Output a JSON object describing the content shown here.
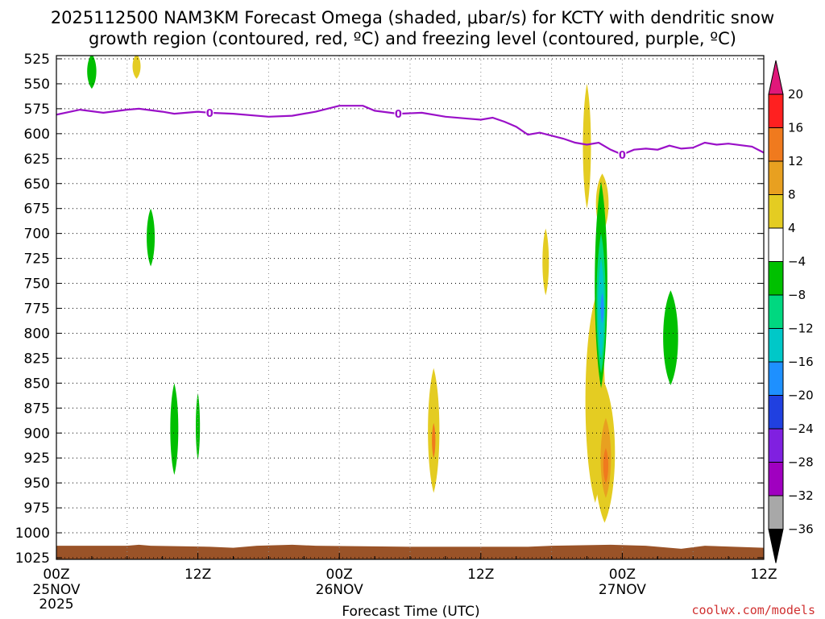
{
  "chart_data": {
    "type": "time-height",
    "title_line1": "2025112500 NAM3KM Forecast Omega (shaded, μbar/s) for KCTY with dendritic snow",
    "title_line2": "growth region (contoured, red, ºC) and freezing level (contoured, purple, ºC)",
    "xlabel": "Forecast Time (UTC)",
    "credit": "coolwx.com/models",
    "x_range_hours": [
      0,
      60
    ],
    "y_levels_hpa": [
      525,
      550,
      575,
      600,
      625,
      650,
      675,
      700,
      725,
      750,
      775,
      800,
      825,
      850,
      875,
      900,
      925,
      950,
      975,
      1000,
      1025
    ],
    "x_ticks": [
      {
        "hour": 0,
        "label": "00Z",
        "sub": "25NOV",
        "sub2": "2025"
      },
      {
        "hour": 12,
        "label": "12Z",
        "sub": "",
        "sub2": ""
      },
      {
        "hour": 24,
        "label": "00Z",
        "sub": "26NOV",
        "sub2": ""
      },
      {
        "hour": 36,
        "label": "12Z",
        "sub": "",
        "sub2": ""
      },
      {
        "hour": 48,
        "label": "00Z",
        "sub": "27NOV",
        "sub2": ""
      },
      {
        "hour": 60,
        "label": "12Z",
        "sub": "",
        "sub2": ""
      }
    ],
    "freezing_level": {
      "label": "0",
      "label_hours": [
        13,
        29,
        48
      ],
      "points": [
        [
          0,
          581
        ],
        [
          2,
          576
        ],
        [
          4,
          579
        ],
        [
          6,
          576
        ],
        [
          7,
          575
        ],
        [
          9,
          578
        ],
        [
          10,
          580
        ],
        [
          12,
          578
        ],
        [
          13,
          579
        ],
        [
          15,
          580
        ],
        [
          18,
          583
        ],
        [
          20,
          582
        ],
        [
          22,
          578
        ],
        [
          24,
          572
        ],
        [
          26,
          572
        ],
        [
          27,
          577
        ],
        [
          29,
          580
        ],
        [
          31,
          579
        ],
        [
          33,
          583
        ],
        [
          35,
          585
        ],
        [
          36,
          586
        ],
        [
          37,
          584
        ],
        [
          38,
          588
        ],
        [
          39,
          593
        ],
        [
          40,
          601
        ],
        [
          41,
          599
        ],
        [
          42,
          602
        ],
        [
          43,
          605
        ],
        [
          44,
          609
        ],
        [
          45,
          611
        ],
        [
          46,
          609
        ],
        [
          47,
          616
        ],
        [
          48,
          621
        ],
        [
          49,
          616
        ],
        [
          50,
          615
        ],
        [
          51,
          616
        ],
        [
          52,
          612
        ],
        [
          53,
          615
        ],
        [
          54,
          614
        ],
        [
          55,
          609
        ],
        [
          56,
          611
        ],
        [
          57,
          610
        ],
        [
          59,
          613
        ],
        [
          60,
          619
        ]
      ]
    },
    "omega_colorbar": {
      "boundaries": [
        20,
        16,
        12,
        8,
        4,
        -4,
        -8,
        -12,
        -16,
        -20,
        -24,
        -28,
        -32,
        -36
      ],
      "colors": [
        "#ff2020",
        "#f07a1e",
        "#e8a020",
        "#e4cc22",
        "#ffffff",
        "#00c000",
        "#00d880",
        "#00c8c8",
        "#1e90ff",
        "#2040e0",
        "#8020e0",
        "#a000c0",
        "#a8a8a8"
      ],
      "top_arrow_color": "#e0187a",
      "bottom_arrow_color": "#000000"
    },
    "omega_features": [
      {
        "hour": 3.0,
        "p_top": 520,
        "p_bottom": 555,
        "half_width_h": 0.4,
        "value": -6
      },
      {
        "hour": 6.8,
        "p_top": 520,
        "p_bottom": 545,
        "half_width_h": 0.35,
        "value": 5
      },
      {
        "hour": 8.0,
        "p_top": 675,
        "p_bottom": 733,
        "half_width_h": 0.35,
        "value": -6
      },
      {
        "hour": 10.0,
        "p_top": 850,
        "p_bottom": 942,
        "half_width_h": 0.35,
        "value": -6
      },
      {
        "hour": 12.0,
        "p_top": 860,
        "p_bottom": 927,
        "half_width_h": 0.18,
        "value": -6
      },
      {
        "hour": 32.0,
        "p_top": 835,
        "p_bottom": 960,
        "half_width_h": 0.5,
        "value": 6
      },
      {
        "hour": 32.0,
        "p_top": 890,
        "p_bottom": 925,
        "half_width_h": 0.15,
        "value": 13
      },
      {
        "hour": 41.5,
        "p_top": 695,
        "p_bottom": 762,
        "half_width_h": 0.28,
        "value": 5
      },
      {
        "hour": 45.0,
        "p_top": 550,
        "p_bottom": 675,
        "half_width_h": 0.35,
        "value": 5
      },
      {
        "hour": 46.3,
        "p_top": 640,
        "p_bottom": 700,
        "half_width_h": 0.55,
        "value": 6
      },
      {
        "hour": 45.7,
        "p_top": 765,
        "p_bottom": 970,
        "half_width_h": 0.85,
        "value": 6
      },
      {
        "hour": 46.5,
        "p_top": 850,
        "p_bottom": 990,
        "half_width_h": 0.9,
        "value": 6
      },
      {
        "hour": 46.6,
        "p_top": 885,
        "p_bottom": 965,
        "half_width_h": 0.45,
        "value": 10
      },
      {
        "hour": 46.6,
        "p_top": 915,
        "p_bottom": 950,
        "half_width_h": 0.22,
        "value": 14
      },
      {
        "hour": 46.2,
        "p_top": 648,
        "p_bottom": 855,
        "half_width_h": 0.55,
        "value": -6
      },
      {
        "hour": 46.2,
        "p_top": 700,
        "p_bottom": 840,
        "half_width_h": 0.4,
        "value": -10
      },
      {
        "hour": 46.2,
        "p_top": 725,
        "p_bottom": 825,
        "half_width_h": 0.27,
        "value": -14
      },
      {
        "hour": 46.3,
        "p_top": 760,
        "p_bottom": 790,
        "half_width_h": 0.14,
        "value": -18
      },
      {
        "hour": 52.1,
        "p_top": 757,
        "p_bottom": 852,
        "half_width_h": 0.65,
        "value": -6
      }
    ],
    "surface": {
      "color": "#9a5328",
      "points": [
        [
          0,
          1013
        ],
        [
          6,
          1013
        ],
        [
          7,
          1012
        ],
        [
          8,
          1013
        ],
        [
          13,
          1014
        ],
        [
          15,
          1015
        ],
        [
          17,
          1013
        ],
        [
          20,
          1012
        ],
        [
          22,
          1013
        ],
        [
          30,
          1014
        ],
        [
          40,
          1014
        ],
        [
          42,
          1013
        ],
        [
          47,
          1012
        ],
        [
          50,
          1013
        ],
        [
          53,
          1016
        ],
        [
          55,
          1013
        ],
        [
          60,
          1015
        ]
      ]
    }
  }
}
